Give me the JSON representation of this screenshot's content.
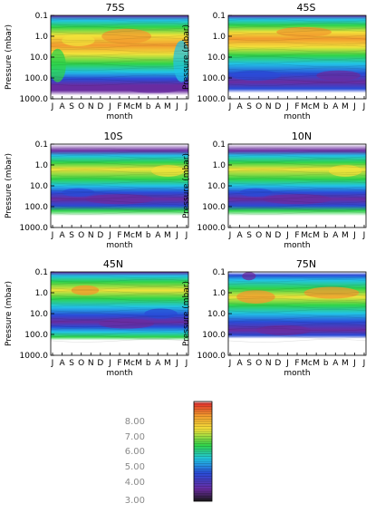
{
  "chart_data": {
    "type": "heatmap",
    "panels": [
      {
        "title": "75S"
      },
      {
        "title": "45S"
      },
      {
        "title": "10S"
      },
      {
        "title": "10N"
      },
      {
        "title": "45N"
      },
      {
        "title": "75N"
      }
    ],
    "xlabel": "month",
    "ylabel": "Pressure (mbar)",
    "x_ticks": [
      "J",
      "A",
      "S",
      "O",
      "N",
      "D",
      "J",
      "F",
      "Mc",
      "M",
      "b",
      "A",
      "M",
      "J",
      "J"
    ],
    "y_ticks": [
      "0.1",
      "1.0",
      "10.0",
      "100.0",
      "1000.0"
    ],
    "y_scale": "log",
    "ylim": [
      1000,
      0.1
    ],
    "colorbar": {
      "ticks": [
        "8.00",
        "7.00",
        "6.00",
        "5.00",
        "4.00",
        "3.00"
      ],
      "range": [
        3,
        8
      ],
      "colormap": "rainbow"
    },
    "colors": {
      "violet": "#6a2ca0",
      "blue": "#2a4bd7",
      "cyan": "#22c3e6",
      "green": "#2fd34a",
      "yellow": "#f2e23a",
      "orange": "#f29a2e",
      "red": "#e0332b"
    }
  }
}
